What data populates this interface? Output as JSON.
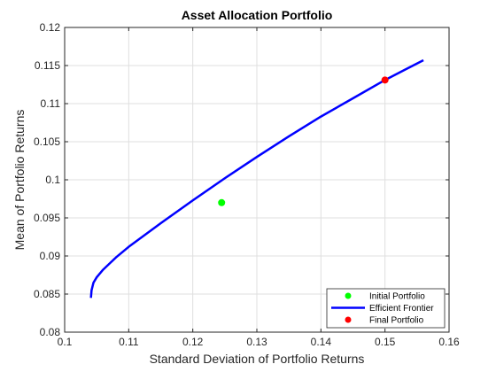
{
  "chart_data": {
    "type": "line",
    "title": "Asset  Allocation  Portfolio",
    "xlabel": "Standard Deviation of Portfolio Returns",
    "ylabel": "Mean of Portfolio Returns",
    "xlim": [
      0.1,
      0.16
    ],
    "ylim": [
      0.08,
      0.12
    ],
    "xticks": [
      0.1,
      0.11,
      0.12,
      0.13,
      0.14,
      0.15,
      0.16
    ],
    "xtick_labels": [
      "0.1",
      "0.11",
      "0.12",
      "0.13",
      "0.14",
      "0.15",
      "0.16"
    ],
    "yticks": [
      0.08,
      0.085,
      0.09,
      0.095,
      0.1,
      0.105,
      0.11,
      0.115,
      0.12
    ],
    "ytick_labels": [
      "0.08",
      "0.085",
      "0.09",
      "0.095",
      "0.1",
      "0.105",
      "0.11",
      "0.115",
      "0.12"
    ],
    "grid": true,
    "legend_position": "bottom-right",
    "series": [
      {
        "name": "Initial Portfolio",
        "kind": "marker",
        "color": "#00ff00",
        "points": [
          [
            0.1245,
            0.097
          ]
        ]
      },
      {
        "name": "Efficient Frontier",
        "kind": "line",
        "color": "#0000ff",
        "points": [
          [
            0.1041,
            0.0845
          ],
          [
            0.1042,
            0.0855
          ],
          [
            0.1045,
            0.0865
          ],
          [
            0.105,
            0.0872
          ],
          [
            0.106,
            0.0882
          ],
          [
            0.108,
            0.0898
          ],
          [
            0.11,
            0.0912
          ],
          [
            0.115,
            0.0943
          ],
          [
            0.12,
            0.0973
          ],
          [
            0.125,
            0.1002
          ],
          [
            0.13,
            0.103
          ],
          [
            0.135,
            0.1057
          ],
          [
            0.14,
            0.1083
          ],
          [
            0.145,
            0.1107
          ],
          [
            0.15,
            0.1131
          ],
          [
            0.153,
            0.1144
          ],
          [
            0.156,
            0.1157
          ]
        ]
      },
      {
        "name": "Final Portfolio",
        "kind": "marker",
        "color": "#ff0000",
        "points": [
          [
            0.15,
            0.1131
          ]
        ]
      }
    ]
  }
}
